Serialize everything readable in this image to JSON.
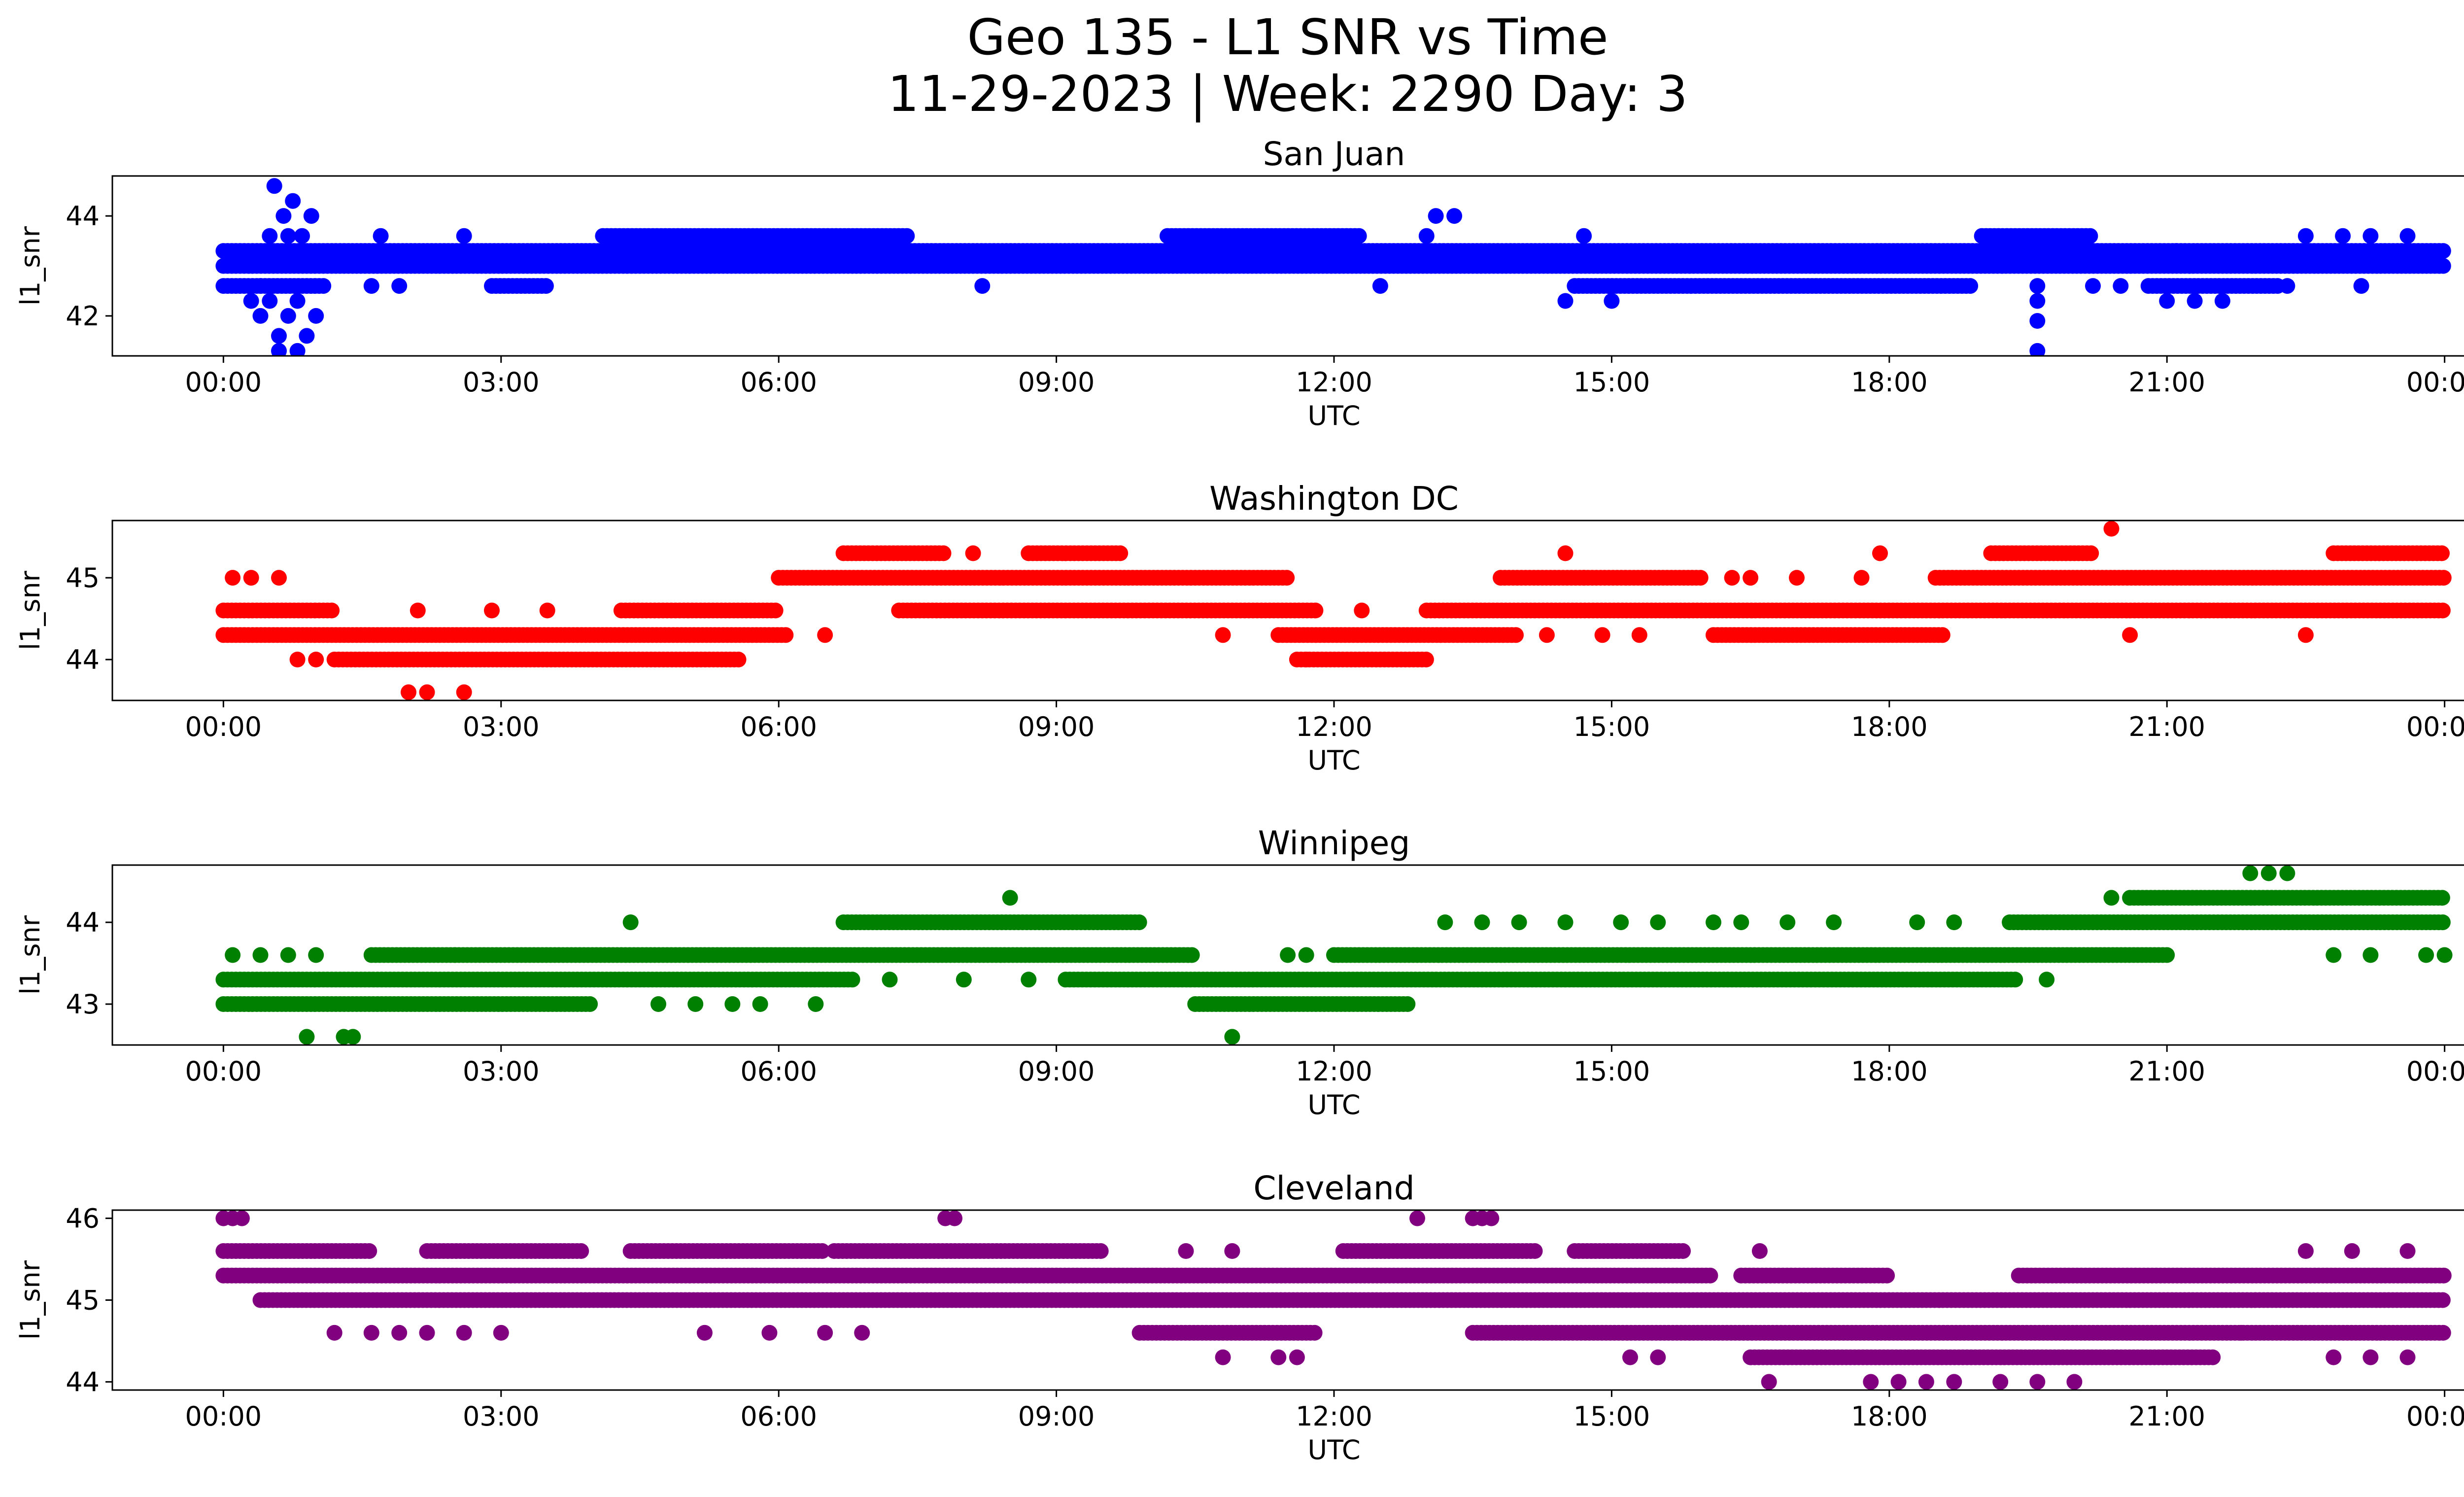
{
  "figure": {
    "title_line1": "Geo 135 - L1 SNR vs Time",
    "title_line2": "11-29-2023 | Week: 2290 Day: 3"
  },
  "chart_data": [
    {
      "type": "scatter",
      "title": "San Juan",
      "xlabel": "UTC",
      "ylabel": "l1_snr",
      "color": "#0000ff",
      "x_unit": "hours UTC",
      "xlim": [
        -1.2,
        25.2
      ],
      "ylim": [
        41.2,
        44.8
      ],
      "x_ticks": [
        0,
        3,
        6,
        9,
        12,
        15,
        18,
        21,
        24
      ],
      "x_tick_labels": [
        "00:00",
        "03:00",
        "06:00",
        "09:00",
        "12:00",
        "15:00",
        "18:00",
        "21:00",
        "00:00"
      ],
      "y_ticks": [
        42,
        44
      ],
      "y_tick_labels": [
        "42",
        "44"
      ],
      "bands": [
        {
          "y": 43.3,
          "ranges": [
            [
              0,
              24
            ]
          ]
        },
        {
          "y": 43.0,
          "ranges": [
            [
              0,
              24
            ]
          ]
        },
        {
          "y": 42.6,
          "ranges": [
            [
              0,
              1.1
            ],
            [
              2.9,
              3.5
            ],
            [
              14.6,
              18.9
            ],
            [
              20.8,
              22.2
            ]
          ]
        },
        {
          "y": 43.6,
          "ranges": [
            [
              4.1,
              7.4
            ],
            [
              10.2,
              12.3
            ],
            [
              19.0,
              20.2
            ]
          ]
        }
      ],
      "points": [
        [
          0.3,
          42.3
        ],
        [
          0.4,
          42.0
        ],
        [
          0.5,
          42.3
        ],
        [
          0.6,
          41.6
        ],
        [
          0.7,
          42.0
        ],
        [
          0.8,
          42.3
        ],
        [
          0.9,
          41.6
        ],
        [
          0.55,
          44.6
        ],
        [
          0.65,
          44.0
        ],
        [
          0.75,
          44.3
        ],
        [
          0.85,
          43.6
        ],
        [
          0.95,
          44.0
        ],
        [
          0.6,
          41.3
        ],
        [
          0.8,
          41.3
        ],
        [
          0.5,
          43.6
        ],
        [
          1.0,
          42.0
        ],
        [
          0.4,
          42.6
        ],
        [
          0.7,
          43.6
        ],
        [
          1.6,
          42.6
        ],
        [
          1.9,
          42.6
        ],
        [
          1.7,
          43.6
        ],
        [
          2.6,
          43.6
        ],
        [
          8.2,
          42.6
        ],
        [
          12.5,
          42.6
        ],
        [
          13.1,
          44.0
        ],
        [
          13.3,
          44.0
        ],
        [
          13.0,
          43.6
        ],
        [
          14.7,
          43.6
        ],
        [
          15.0,
          42.3
        ],
        [
          14.5,
          42.3
        ],
        [
          19.6,
          41.3
        ],
        [
          19.6,
          41.9
        ],
        [
          19.6,
          42.3
        ],
        [
          19.6,
          42.6
        ],
        [
          20.2,
          42.6
        ],
        [
          20.5,
          42.6
        ],
        [
          21.0,
          42.3
        ],
        [
          21.3,
          42.3
        ],
        [
          21.6,
          42.3
        ],
        [
          21.1,
          43.3
        ],
        [
          22.5,
          43.6
        ],
        [
          22.9,
          43.6
        ],
        [
          23.2,
          43.6
        ],
        [
          23.6,
          43.6
        ],
        [
          23.1,
          42.6
        ],
        [
          22.3,
          42.6
        ]
      ]
    },
    {
      "type": "scatter",
      "title": "Washington DC",
      "xlabel": "UTC",
      "ylabel": "l1_snr",
      "color": "#ff0000",
      "x_unit": "hours UTC",
      "xlim": [
        -1.2,
        25.2
      ],
      "ylim": [
        43.5,
        45.7
      ],
      "x_ticks": [
        0,
        3,
        6,
        9,
        12,
        15,
        18,
        21,
        24
      ],
      "x_tick_labels": [
        "00:00",
        "03:00",
        "06:00",
        "09:00",
        "12:00",
        "15:00",
        "18:00",
        "21:00",
        "00:00"
      ],
      "y_ticks": [
        44,
        45
      ],
      "y_tick_labels": [
        "44",
        "45"
      ],
      "bands": [
        {
          "y": 44.6,
          "ranges": [
            [
              0,
              1.2
            ],
            [
              4.3,
              6.0
            ],
            [
              7.3,
              11.8
            ],
            [
              13.0,
              24
            ]
          ]
        },
        {
          "y": 44.3,
          "ranges": [
            [
              0,
              6.1
            ],
            [
              11.4,
              14.0
            ],
            [
              16.1,
              18.6
            ]
          ]
        },
        {
          "y": 44.0,
          "ranges": [
            [
              1.2,
              5.6
            ],
            [
              11.6,
              13.0
            ]
          ]
        },
        {
          "y": 45.0,
          "ranges": [
            [
              6.0,
              11.5
            ],
            [
              13.8,
              16.0
            ],
            [
              18.5,
              24
            ]
          ]
        },
        {
          "y": 45.3,
          "ranges": [
            [
              6.7,
              7.8
            ],
            [
              8.7,
              9.7
            ],
            [
              19.1,
              20.2
            ],
            [
              22.8,
              24
            ]
          ]
        }
      ],
      "points": [
        [
          0.1,
          45.0
        ],
        [
          0.3,
          45.0
        ],
        [
          0.6,
          45.0
        ],
        [
          0.8,
          44.0
        ],
        [
          1.0,
          44.0
        ],
        [
          2.0,
          43.6
        ],
        [
          2.2,
          43.6
        ],
        [
          2.6,
          43.6
        ],
        [
          2.1,
          44.6
        ],
        [
          2.9,
          44.6
        ],
        [
          3.5,
          44.6
        ],
        [
          6.5,
          44.3
        ],
        [
          8.1,
          45.3
        ],
        [
          10.8,
          44.3
        ],
        [
          11.7,
          44.0
        ],
        [
          12.3,
          44.6
        ],
        [
          14.5,
          45.3
        ],
        [
          14.3,
          44.3
        ],
        [
          14.9,
          44.3
        ],
        [
          15.3,
          44.3
        ],
        [
          16.3,
          45.0
        ],
        [
          17.0,
          45.0
        ],
        [
          17.7,
          45.0
        ],
        [
          17.9,
          45.3
        ],
        [
          20.4,
          45.6
        ],
        [
          20.6,
          44.3
        ],
        [
          22.5,
          44.3
        ],
        [
          14.7,
          45.0
        ],
        [
          16.5,
          45.0
        ]
      ]
    },
    {
      "type": "scatter",
      "title": "Winnipeg",
      "xlabel": "UTC",
      "ylabel": "l1_snr",
      "color": "#008000",
      "x_unit": "hours UTC",
      "xlim": [
        -1.2,
        25.2
      ],
      "ylim": [
        42.5,
        44.7
      ],
      "x_ticks": [
        0,
        3,
        6,
        9,
        12,
        15,
        18,
        21,
        24
      ],
      "x_tick_labels": [
        "00:00",
        "03:00",
        "06:00",
        "09:00",
        "12:00",
        "15:00",
        "18:00",
        "21:00",
        "00:00"
      ],
      "y_ticks": [
        43,
        44
      ],
      "y_tick_labels": [
        "43",
        "44"
      ],
      "bands": [
        {
          "y": 43.3,
          "ranges": [
            [
              0,
              6.8
            ],
            [
              9.1,
              19.4
            ]
          ]
        },
        {
          "y": 43.6,
          "ranges": [
            [
              1.6,
              10.5
            ],
            [
              12.0,
              21.0
            ]
          ]
        },
        {
          "y": 43.0,
          "ranges": [
            [
              0,
              4.0
            ],
            [
              10.5,
              12.8
            ]
          ]
        },
        {
          "y": 44.0,
          "ranges": [
            [
              6.7,
              9.9
            ],
            [
              19.3,
              24
            ]
          ]
        },
        {
          "y": 44.3,
          "ranges": [
            [
              20.6,
              24
            ]
          ]
        }
      ],
      "points": [
        [
          0.1,
          43.6
        ],
        [
          0.4,
          43.6
        ],
        [
          0.7,
          43.6
        ],
        [
          1.0,
          43.6
        ],
        [
          0.9,
          42.6
        ],
        [
          1.3,
          42.6
        ],
        [
          1.4,
          42.6
        ],
        [
          2.5,
          43.6
        ],
        [
          4.4,
          44.0
        ],
        [
          4.7,
          43.0
        ],
        [
          5.1,
          43.0
        ],
        [
          5.5,
          43.0
        ],
        [
          5.8,
          43.0
        ],
        [
          6.4,
          43.0
        ],
        [
          7.2,
          43.3
        ],
        [
          8.0,
          43.3
        ],
        [
          8.5,
          44.3
        ],
        [
          8.7,
          43.3
        ],
        [
          10.9,
          42.6
        ],
        [
          11.5,
          43.6
        ],
        [
          11.7,
          43.6
        ],
        [
          13.2,
          44.0
        ],
        [
          13.6,
          44.0
        ],
        [
          14.0,
          44.0
        ],
        [
          14.5,
          44.0
        ],
        [
          15.1,
          44.0
        ],
        [
          15.5,
          44.0
        ],
        [
          16.1,
          44.0
        ],
        [
          16.4,
          44.0
        ],
        [
          16.9,
          44.0
        ],
        [
          17.4,
          44.0
        ],
        [
          18.3,
          44.0
        ],
        [
          18.7,
          44.0
        ],
        [
          19.7,
          43.3
        ],
        [
          20.4,
          44.3
        ],
        [
          21.9,
          44.6
        ],
        [
          22.1,
          44.6
        ],
        [
          22.3,
          44.6
        ],
        [
          22.8,
          43.6
        ],
        [
          23.2,
          43.6
        ],
        [
          23.8,
          43.6
        ],
        [
          24.0,
          43.6
        ]
      ]
    },
    {
      "type": "scatter",
      "title": "Cleveland",
      "xlabel": "UTC",
      "ylabel": "l1_snr",
      "color": "#800080",
      "x_unit": "hours UTC",
      "xlim": [
        -1.2,
        25.2
      ],
      "ylim": [
        43.9,
        46.1
      ],
      "x_ticks": [
        0,
        3,
        6,
        9,
        12,
        15,
        18,
        21,
        24
      ],
      "x_tick_labels": [
        "00:00",
        "03:00",
        "06:00",
        "09:00",
        "12:00",
        "15:00",
        "18:00",
        "21:00",
        "00:00"
      ],
      "y_ticks": [
        44,
        45,
        46
      ],
      "y_tick_labels": [
        "44",
        "45",
        "46"
      ],
      "bands": [
        {
          "y": 45.3,
          "ranges": [
            [
              0,
              16.1
            ],
            [
              16.4,
              18.0
            ],
            [
              19.4,
              24
            ]
          ]
        },
        {
          "y": 45.0,
          "ranges": [
            [
              0.4,
              24
            ]
          ]
        },
        {
          "y": 45.6,
          "ranges": [
            [
              0,
              1.6
            ],
            [
              2.2,
              3.9
            ],
            [
              4.4,
              6.5
            ],
            [
              6.6,
              9.5
            ],
            [
              12.1,
              14.2
            ],
            [
              14.6,
              15.8
            ]
          ]
        },
        {
          "y": 44.6,
          "ranges": [
            [
              9.9,
              11.8
            ],
            [
              13.5,
              24
            ]
          ]
        },
        {
          "y": 44.3,
          "ranges": [
            [
              16.5,
              21.5
            ]
          ]
        }
      ],
      "points": [
        [
          0.0,
          46.0
        ],
        [
          0.1,
          46.0
        ],
        [
          0.2,
          46.0
        ],
        [
          7.8,
          46.0
        ],
        [
          7.9,
          46.0
        ],
        [
          12.9,
          46.0
        ],
        [
          13.5,
          46.0
        ],
        [
          13.6,
          46.0
        ],
        [
          13.7,
          46.0
        ],
        [
          1.2,
          44.6
        ],
        [
          1.6,
          44.6
        ],
        [
          1.9,
          44.6
        ],
        [
          2.2,
          44.6
        ],
        [
          2.6,
          44.6
        ],
        [
          3.0,
          44.6
        ],
        [
          5.2,
          44.6
        ],
        [
          5.9,
          44.6
        ],
        [
          6.5,
          44.6
        ],
        [
          6.9,
          44.6
        ],
        [
          10.8,
          44.3
        ],
        [
          11.4,
          44.3
        ],
        [
          11.6,
          44.3
        ],
        [
          15.2,
          44.3
        ],
        [
          15.5,
          44.3
        ],
        [
          16.7,
          44.0
        ],
        [
          17.8,
          44.0
        ],
        [
          18.1,
          44.0
        ],
        [
          18.4,
          44.0
        ],
        [
          18.7,
          44.0
        ],
        [
          19.2,
          44.0
        ],
        [
          19.6,
          44.0
        ],
        [
          20.0,
          44.0
        ],
        [
          22.8,
          44.3
        ],
        [
          23.2,
          44.3
        ],
        [
          23.6,
          44.3
        ],
        [
          22.5,
          45.6
        ],
        [
          23.0,
          45.6
        ],
        [
          23.6,
          45.6
        ],
        [
          10.4,
          45.6
        ],
        [
          10.9,
          45.6
        ],
        [
          16.6,
          45.6
        ],
        [
          21.8,
          44.6
        ]
      ]
    }
  ]
}
